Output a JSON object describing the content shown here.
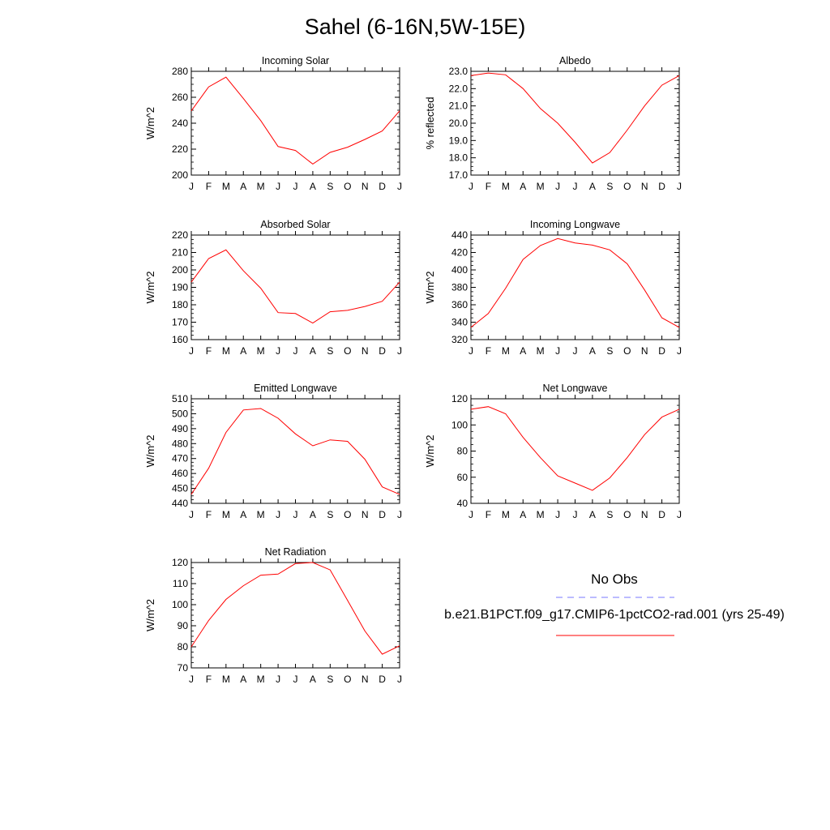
{
  "title": "Sahel (6-16N,5W-15E)",
  "legend": {
    "obs_label": "No Obs",
    "obs_color": "#7777ff",
    "model_label": "b.e21.B1PCT.f09_g17.CMIP6-1pctCO2-rad.001 (yrs 25-49)",
    "model_color": "#ff0000"
  },
  "chart_data": [
    {
      "type": "line",
      "title": "Incoming Solar",
      "ylabel": "W/m^2",
      "x": [
        "J",
        "F",
        "M",
        "A",
        "M",
        "J",
        "J",
        "A",
        "S",
        "O",
        "N",
        "D",
        "J"
      ],
      "ylim": [
        200,
        280
      ],
      "yticks": [
        "200",
        "220",
        "240",
        "260",
        "280"
      ],
      "series": [
        {
          "values": [
            249.5,
            268,
            275.5,
            259,
            242,
            222,
            219,
            208.5,
            217.5,
            221.5,
            227.5,
            234,
            249.5
          ]
        }
      ]
    },
    {
      "type": "line",
      "title": "Albedo",
      "ylabel": "% reflected",
      "x": [
        "J",
        "F",
        "M",
        "A",
        "M",
        "J",
        "J",
        "A",
        "S",
        "O",
        "N",
        "D",
        "J"
      ],
      "ylim": [
        17.0,
        23.0
      ],
      "yticks": [
        "17.0",
        "18.0",
        "19.0",
        "20.0",
        "21.0",
        "22.0",
        "23.0"
      ],
      "series": [
        {
          "values": [
            22.75,
            22.9,
            22.8,
            22.0,
            20.85,
            20.0,
            18.9,
            17.7,
            18.3,
            19.6,
            21.0,
            22.2,
            22.75
          ]
        }
      ]
    },
    {
      "type": "line",
      "title": "Absorbed Solar",
      "ylabel": "W/m^2",
      "x": [
        "J",
        "F",
        "M",
        "A",
        "M",
        "J",
        "J",
        "A",
        "S",
        "O",
        "N",
        "D",
        "J"
      ],
      "ylim": [
        160,
        220
      ],
      "yticks": [
        "160",
        "170",
        "180",
        "190",
        "200",
        "210",
        "220"
      ],
      "series": [
        {
          "values": [
            193,
            206.5,
            211.5,
            199.5,
            189.5,
            175.5,
            175,
            169.5,
            176,
            176.8,
            179,
            182,
            193
          ]
        }
      ]
    },
    {
      "type": "line",
      "title": "Incoming Longwave",
      "ylabel": "W/m^2",
      "x": [
        "J",
        "F",
        "M",
        "A",
        "M",
        "J",
        "J",
        "A",
        "S",
        "O",
        "N",
        "D",
        "J"
      ],
      "ylim": [
        320,
        440
      ],
      "yticks": [
        "320",
        "340",
        "360",
        "380",
        "400",
        "420",
        "440"
      ],
      "series": [
        {
          "values": [
            334,
            350,
            379,
            412,
            428,
            436,
            431,
            428.5,
            423,
            407,
            377,
            345,
            334
          ]
        }
      ]
    },
    {
      "type": "line",
      "title": "Emitted Longwave",
      "ylabel": "W/m^2",
      "x": [
        "J",
        "F",
        "M",
        "A",
        "M",
        "J",
        "J",
        "A",
        "S",
        "O",
        "N",
        "D",
        "J"
      ],
      "ylim": [
        440,
        510
      ],
      "yticks": [
        "440",
        "450",
        "460",
        "470",
        "480",
        "490",
        "500",
        "510"
      ],
      "series": [
        {
          "values": [
            446,
            463.5,
            487.5,
            502.5,
            503.5,
            497,
            486.5,
            478.5,
            482.5,
            481.5,
            469.5,
            451,
            446
          ]
        }
      ]
    },
    {
      "type": "line",
      "title": "Net Longwave",
      "ylabel": "W/m^2",
      "x": [
        "J",
        "F",
        "M",
        "A",
        "M",
        "J",
        "J",
        "A",
        "S",
        "O",
        "N",
        "D",
        "J"
      ],
      "ylim": [
        40,
        120
      ],
      "yticks": [
        "40",
        "60",
        "80",
        "100",
        "120"
      ],
      "series": [
        {
          "values": [
            112,
            114,
            108.5,
            90.5,
            75,
            61,
            55.5,
            50,
            59.5,
            75,
            92.5,
            106,
            112
          ]
        }
      ]
    },
    {
      "type": "line",
      "title": "Net Radiation",
      "ylabel": "W/m^2",
      "x": [
        "J",
        "F",
        "M",
        "A",
        "M",
        "J",
        "J",
        "A",
        "S",
        "O",
        "N",
        "D",
        "J"
      ],
      "ylim": [
        70,
        120
      ],
      "yticks": [
        "70",
        "80",
        "90",
        "100",
        "110",
        "120"
      ],
      "series": [
        {
          "values": [
            80,
            92.5,
            102.5,
            109,
            114,
            114.5,
            119.5,
            120,
            116.5,
            102,
            87.5,
            76.5,
            80.5
          ]
        }
      ]
    }
  ]
}
